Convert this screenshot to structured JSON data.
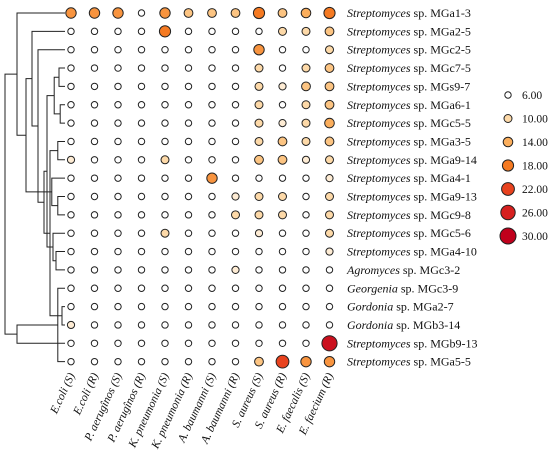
{
  "chart_data": {
    "type": "bubble-heatmap",
    "columns": [
      "E.coli (S)",
      "E.coli (R)",
      "P. aerugînos (S)",
      "P. aerugînos (R)",
      "K. pneumonia (S)",
      "K. pneumonia (R)",
      "A. baumanni (S)",
      "A. baumanni (R)",
      "S. aureus (S)",
      "S. aureus (R)",
      "E. faecalis (S)",
      "E. faecium (R)"
    ],
    "rows": [
      {
        "genus": "Streptomyces",
        "strain": "sp. MGa1-3",
        "values": [
          16,
          16,
          16,
          6,
          16,
          12,
          12,
          12,
          18,
          12,
          14,
          18
        ]
      },
      {
        "genus": "Streptomyces",
        "strain": "sp. MGa2-5",
        "values": [
          6,
          6,
          6,
          6,
          18,
          6,
          6,
          6,
          6,
          10,
          10,
          12
        ]
      },
      {
        "genus": "Streptomyces",
        "strain": "sp. MGc2-5",
        "values": [
          6,
          6,
          6,
          6,
          6,
          6,
          6,
          6,
          16,
          6,
          6,
          10
        ]
      },
      {
        "genus": "Streptomyces",
        "strain": "sp. MGc7-5",
        "values": [
          6,
          6,
          6,
          6,
          6,
          6,
          6,
          6,
          10,
          6,
          10,
          12
        ]
      },
      {
        "genus": "Streptomyces",
        "strain": "sp. MGs9-7",
        "values": [
          6,
          6,
          6,
          6,
          6,
          6,
          6,
          6,
          10,
          8,
          12,
          12
        ]
      },
      {
        "genus": "Streptomyces",
        "strain": "sp. MGa6-1",
        "values": [
          6,
          6,
          6,
          6,
          6,
          6,
          6,
          6,
          10,
          6,
          10,
          12
        ]
      },
      {
        "genus": "Streptomyces",
        "strain": "sp. MGc5-5",
        "values": [
          6,
          6,
          6,
          6,
          6,
          6,
          6,
          6,
          10,
          8,
          10,
          14
        ]
      },
      {
        "genus": "Streptomyces",
        "strain": "sp. MGa3-5",
        "values": [
          6,
          6,
          6,
          6,
          6,
          6,
          6,
          6,
          10,
          12,
          10,
          12
        ]
      },
      {
        "genus": "Streptomyces",
        "strain": "sp. MGa9-14",
        "values": [
          8,
          6,
          6,
          6,
          10,
          6,
          6,
          6,
          12,
          12,
          8,
          10
        ]
      },
      {
        "genus": "Streptomyces",
        "strain": "sp. MGa4-1",
        "values": [
          6,
          6,
          6,
          6,
          6,
          6,
          16,
          6,
          6,
          6,
          6,
          8
        ]
      },
      {
        "genus": "Streptomyces",
        "strain": "sp. MGa9-13",
        "values": [
          6,
          6,
          6,
          6,
          6,
          6,
          6,
          8,
          10,
          10,
          6,
          10
        ]
      },
      {
        "genus": "Streptomyces",
        "strain": "sp. MGc9-8",
        "values": [
          6,
          6,
          6,
          6,
          6,
          6,
          6,
          10,
          10,
          10,
          6,
          10
        ]
      },
      {
        "genus": "Streptomyces",
        "strain": "sp. MGc5-6",
        "values": [
          6,
          6,
          6,
          6,
          10,
          6,
          6,
          6,
          8,
          6,
          6,
          10
        ]
      },
      {
        "genus": "Streptomyces",
        "strain": "sp. MGa4-10",
        "values": [
          6,
          6,
          6,
          6,
          6,
          6,
          6,
          6,
          6,
          6,
          6,
          8
        ]
      },
      {
        "genus": "Agromyces",
        "strain": "sp. MGc3-2",
        "values": [
          6,
          6,
          6,
          6,
          6,
          6,
          6,
          8,
          6,
          6,
          6,
          6
        ]
      },
      {
        "genus": "Georgenia",
        "strain": "sp. MGc3-9",
        "values": [
          6,
          6,
          6,
          6,
          6,
          6,
          6,
          6,
          6,
          6,
          6,
          6
        ]
      },
      {
        "genus": "Gordonia",
        "strain": "sp. MGa2-7",
        "values": [
          6,
          6,
          6,
          6,
          6,
          6,
          6,
          6,
          6,
          6,
          6,
          6
        ]
      },
      {
        "genus": "Gordonia",
        "strain": "sp. MGb3-14",
        "values": [
          8,
          6,
          6,
          6,
          6,
          6,
          6,
          6,
          6,
          6,
          6,
          6
        ]
      },
      {
        "genus": "Streptomyces",
        "strain": "sp. MGb9-13",
        "values": [
          6,
          6,
          6,
          6,
          6,
          6,
          6,
          6,
          6,
          6,
          6,
          28
        ]
      },
      {
        "genus": "Streptomyces",
        "strain": "sp. MGa5-5",
        "values": [
          6,
          6,
          6,
          6,
          6,
          6,
          6,
          6,
          12,
          22,
          16,
          16
        ]
      }
    ],
    "legend": {
      "placement": "right",
      "values": [
        6,
        10,
        14,
        18,
        22,
        26,
        30
      ],
      "labels": [
        "6.00",
        "10.00",
        "14.00",
        "18.00",
        "22.00",
        "26.00",
        "30.00"
      ]
    },
    "color_scale": {
      "stops": [
        {
          "value": 6,
          "color": "#ffffff"
        },
        {
          "value": 10,
          "color": "#fdd9a8"
        },
        {
          "value": 14,
          "color": "#fbae5c"
        },
        {
          "value": 18,
          "color": "#f57a22"
        },
        {
          "value": 22,
          "color": "#e8421e"
        },
        {
          "value": 26,
          "color": "#d6201f"
        },
        {
          "value": 30,
          "color": "#c0001c"
        }
      ]
    },
    "dendrogram": {
      "leaf_order": [
        0,
        1,
        2,
        3,
        4,
        5,
        6,
        7,
        8,
        9,
        10,
        11,
        12,
        13,
        14,
        15,
        16,
        17,
        18,
        19
      ],
      "merges": [
        {
          "a": 3,
          "b": 4,
          "height": 0.1
        },
        {
          "a": 5,
          "b": 6,
          "height": 0.08
        },
        {
          "a": 16,
          "b": 17,
          "height": 0.05
        },
        {
          "a": 7,
          "b": 8,
          "height": 0.12
        },
        {
          "a": 10,
          "b": 11,
          "height": 0.12
        },
        {
          "a": 20,
          "b": 21,
          "height": 0.18
        },
        {
          "a": 22,
          "b": 23,
          "height": 0.25
        },
        {
          "a": 9,
          "b": 24,
          "height": 0.22
        },
        {
          "a": 13,
          "b": 14,
          "height": 0.15
        },
        {
          "a": 12,
          "b": 28,
          "height": 0.2
        },
        {
          "a": 25,
          "b": 29,
          "height": 0.3
        },
        {
          "a": 15,
          "b": 19,
          "height": 0.12
        },
        {
          "a": 26,
          "b": 30,
          "height": 0.35
        },
        {
          "a": 2,
          "b": 32,
          "height": 0.45
        },
        {
          "a": 1,
          "b": 33,
          "height": 0.55
        },
        {
          "a": 34,
          "b": 27,
          "height": 0.65
        },
        {
          "a": 0,
          "b": 35,
          "height": 0.8
        },
        {
          "a": 18,
          "b": 31,
          "height": 0.8
        },
        {
          "a": 36,
          "b": 37,
          "height": 1.0
        }
      ]
    }
  }
}
